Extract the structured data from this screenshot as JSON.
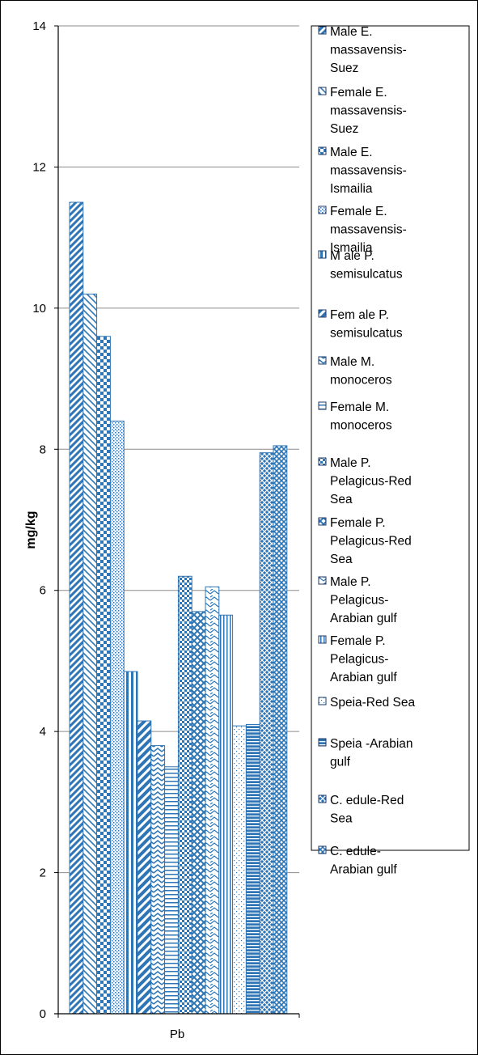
{
  "chart_data": {
    "type": "bar",
    "title": "",
    "xlabel": "",
    "ylabel": "mg/kg",
    "categories": [
      "Pb"
    ],
    "ylim": [
      0,
      14
    ],
    "yticks": [
      0,
      2,
      4,
      6,
      8,
      10,
      12,
      14
    ],
    "grid": true,
    "legend_position": "right",
    "series": [
      {
        "name": "Male E. massavensis-Suez",
        "values": [
          11.5
        ],
        "color": "#2e75b6",
        "pattern": "diag-right"
      },
      {
        "name": "Female E. massavensis-Suez",
        "values": [
          10.2
        ],
        "color": "#2e75b6",
        "pattern": "diag-left"
      },
      {
        "name": "Male E. massavensis-Ismailia",
        "values": [
          9.6
        ],
        "color": "#2e75b6",
        "pattern": "checker"
      },
      {
        "name": "Female E. massavensis-Ismailia",
        "values": [
          8.4
        ],
        "color": "#2e75b6",
        "pattern": "dots"
      },
      {
        "name": "M ale P. semisulcatus",
        "values": [
          4.85
        ],
        "color": "#2e75b6",
        "pattern": "vertical"
      },
      {
        "name": "Fem ale  P. semisulcatus",
        "values": [
          4.15
        ],
        "color": "#2e75b6",
        "pattern": "wide-diag"
      },
      {
        "name": "Male M. monoceros",
        "values": [
          3.8
        ],
        "color": "#2e75b6",
        "pattern": "zigzag"
      },
      {
        "name": "Female M. monoceros",
        "values": [
          3.5
        ],
        "color": "#2e75b6",
        "pattern": "horizontal"
      },
      {
        "name": "Male P. Pelagicus-Red Sea",
        "values": [
          6.2
        ],
        "color": "#2e75b6",
        "pattern": "sparse-checker"
      },
      {
        "name": "Female P. Pelagicus-Red Sea",
        "values": [
          5.7
        ],
        "color": "#2e75b6",
        "pattern": "diamond"
      },
      {
        "name": "Male P. Pelagicus-Arabian gulf",
        "values": [
          6.05
        ],
        "color": "#2e75b6",
        "pattern": "wave"
      },
      {
        "name": "Female P. Pelagicus-Arabian gulf",
        "values": [
          5.65
        ],
        "color": "#2e75b6",
        "pattern": "vertical-dense"
      },
      {
        "name": "Speia-Red Sea",
        "values": [
          4.08
        ],
        "color": "#2e75b6",
        "pattern": "sparse-dots"
      },
      {
        "name": "Speia -Arabian gulf",
        "values": [
          4.1
        ],
        "color": "#2e75b6",
        "pattern": "horizontal-dense"
      },
      {
        "name": "C. edule-Red Sea",
        "values": [
          7.95
        ],
        "color": "#2e75b6",
        "pattern": "grid-diag"
      },
      {
        "name": "C. edule-Arabian gulf",
        "values": [
          8.05
        ],
        "color": "#2e75b6",
        "pattern": "checker-small"
      }
    ]
  }
}
